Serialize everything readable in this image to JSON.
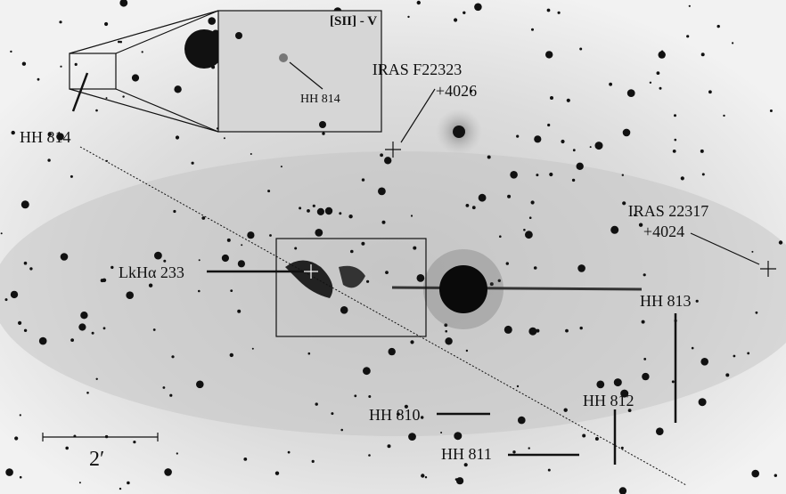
{
  "inset": {
    "title": "[SII] - V",
    "label": "HH 814"
  },
  "labels": {
    "iras_f22323_name": "IRAS F22323",
    "iras_f22323_num": "+4026",
    "iras_22317_name": "IRAS 22317",
    "iras_22317_num": "+4024",
    "hh814": "HH 814",
    "lkha233": "LkHα 233",
    "hh813": "HH 813",
    "hh812": "HH 812",
    "hh810": "HH 810",
    "hh811": "HH 811",
    "scale": "2′"
  }
}
